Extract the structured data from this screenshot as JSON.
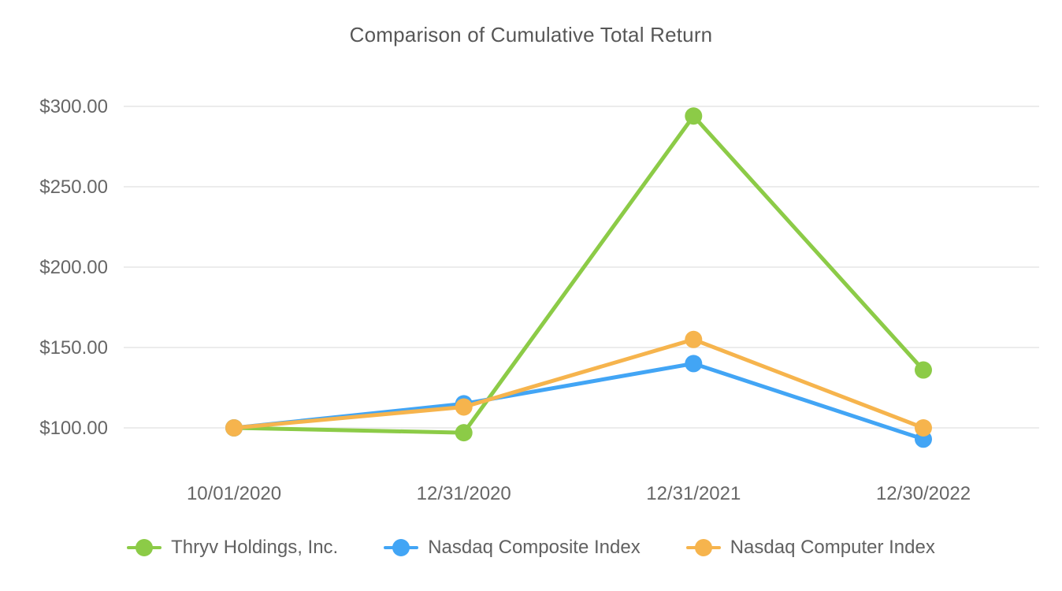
{
  "chart_data": {
    "type": "line",
    "title": "Comparison of Cumulative Total Return",
    "categories": [
      "10/01/2020",
      "12/31/2020",
      "12/31/2021",
      "12/30/2022"
    ],
    "series": [
      {
        "name": "Thryv Holdings, Inc.",
        "color": "#8CCB47",
        "values": [
          100,
          97,
          294,
          136
        ]
      },
      {
        "name": "Nasdaq Composite Index",
        "color": "#42A5F5",
        "values": [
          100,
          115,
          140,
          93
        ]
      },
      {
        "name": "Nasdaq Computer Index",
        "color": "#F6B44D",
        "values": [
          100,
          113,
          155,
          100
        ]
      }
    ],
    "y_ticks": [
      {
        "value": 100,
        "label": "$100.00"
      },
      {
        "value": 150,
        "label": "$150.00"
      },
      {
        "value": 200,
        "label": "$200.00"
      },
      {
        "value": 250,
        "label": "$250.00"
      },
      {
        "value": 300,
        "label": "$300.00"
      }
    ],
    "ylim_labeled": [
      100,
      300
    ],
    "grid": true,
    "legend_position": "bottom",
    "colors": {
      "title_text": "#575757",
      "axis_text": "#666666",
      "legend_text": "#616161",
      "gridline": "#ECECEC",
      "background": "#FFFFFF"
    }
  }
}
